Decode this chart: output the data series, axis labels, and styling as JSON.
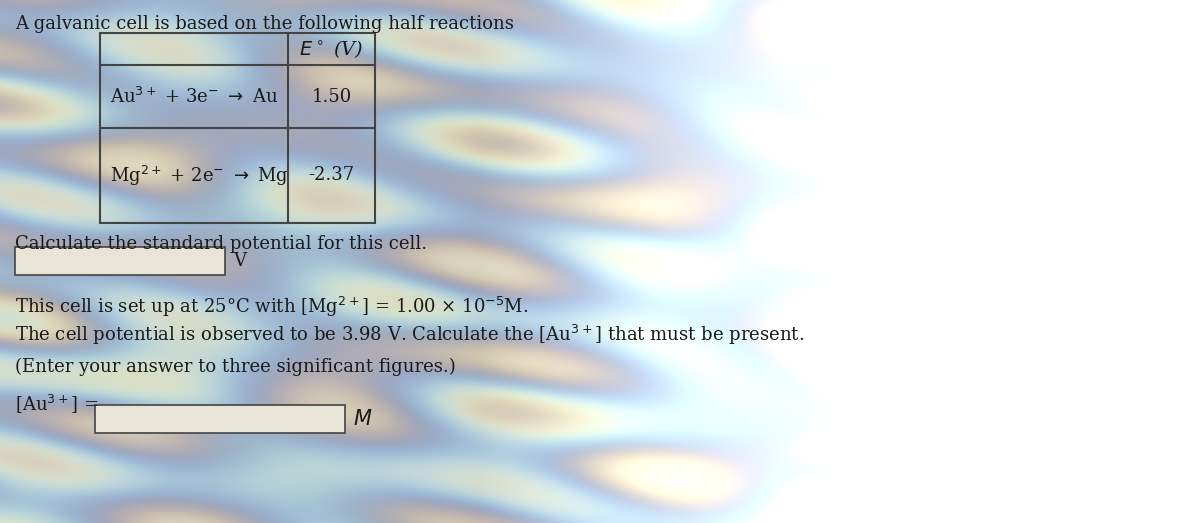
{
  "title_line": "A galvanic cell is based on the following half reactions",
  "table_header": "$E^\\circ$ (V)",
  "row1_reaction": "Au$^{3+}$ + 3e$^{-}$ $\\rightarrow$ Au",
  "row1_value": "1.50",
  "row2_reaction": "Mg$^{2+}$ + 2e$^{-}$ $\\rightarrow$ Mg",
  "row2_value": "-2.37",
  "question1": "Calculate the standard potential for this cell.",
  "unit1": "V",
  "question2_line1": "This cell is set up at 25°C with [Mg$^{2+}$] = 1.00 × 10$^{-5}$M.",
  "question2_line2": "The cell potential is observed to be 3.98 V. Calculate the [Au$^{3+}$] that must be present.",
  "question2_line3": "(Enter your answer to three significant figures.)",
  "answer_label": "[Au$^{3+}$] =",
  "answer_unit": "$M$",
  "text_color": "#1a1a1a",
  "table_border_color": "#444444",
  "input_box_color": "#e8e4d8",
  "font_size_title": 13,
  "font_size_body": 13,
  "font_size_table": 13
}
